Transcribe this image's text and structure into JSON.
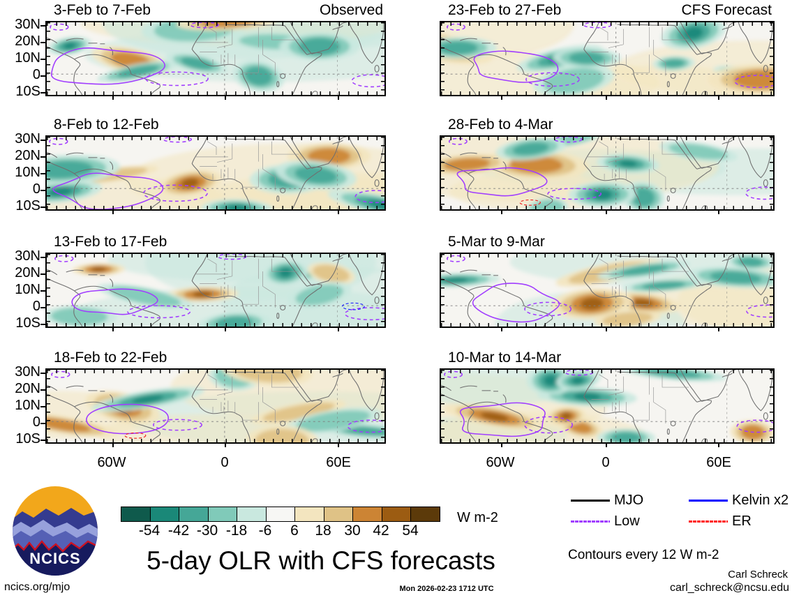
{
  "figure": {
    "columns": [
      {
        "header": "Observed",
        "panels": [
          {
            "title": "3-Feb to 7-Feb"
          },
          {
            "title": "8-Feb to 12-Feb"
          },
          {
            "title": "13-Feb to 17-Feb"
          },
          {
            "title": "18-Feb to 22-Feb"
          }
        ]
      },
      {
        "header": "CFS Forecast",
        "panels": [
          {
            "title": "23-Feb to 27-Feb"
          },
          {
            "title": "28-Feb to 4-Mar"
          },
          {
            "title": "5-Mar to 9-Mar"
          },
          {
            "title": "10-Mar to 14-Mar"
          }
        ]
      }
    ],
    "y_tick_labels": [
      "30N",
      "20N",
      "10N",
      "0",
      "10S"
    ],
    "x_tick_labels": [
      "60W",
      "0",
      "60E"
    ]
  },
  "colorbar": {
    "tick_labels": [
      "-54",
      "-42",
      "-30",
      "-18",
      "-6",
      "6",
      "18",
      "30",
      "42",
      "54"
    ],
    "colors": [
      "#0f5a4c",
      "#1a8878",
      "#45a797",
      "#80cab9",
      "#c9e8df",
      "#f7f7f4",
      "#f3e5bf",
      "#dfc286",
      "#cc8434",
      "#9c5c12",
      "#5c3a0a"
    ],
    "units": "W m-2"
  },
  "legend": {
    "items": [
      {
        "label": "MJO",
        "color": "#000000",
        "style": "solid"
      },
      {
        "label": "Low",
        "color": "#a13dff",
        "style": "dashed-fine"
      },
      {
        "label": "Kelvin x2",
        "color": "#0000ff",
        "style": "solid"
      },
      {
        "label": "ER",
        "color": "#ff1a1a",
        "style": "dashed-fine"
      }
    ],
    "note": "Contours every 12 W m-2"
  },
  "title": "5-day OLR with CFS forecasts",
  "footer": {
    "site": "ncics.org/mjo",
    "timestamp": "Mon 2026-02-23 1712 UTC",
    "author": "Carl Schreck",
    "email": "carl_schreck@ncsu.edu"
  },
  "logo": {
    "text": "NCICS"
  },
  "map_colors": {
    "coast": "#6f6f6f",
    "border_lines": "#979797",
    "grid": "#7d7d7d",
    "contour_low": "#a13dff",
    "contour_kelvin": "#2222ff",
    "contour_er": "#ee2222"
  },
  "chart_data": {
    "type": "heatmap",
    "title": "5-day OLR with CFS forecasts",
    "variable": "Outgoing Longwave Radiation anomaly",
    "units": "W m-2",
    "colorbar_levels": [
      -54,
      -42,
      -30,
      -18,
      -6,
      6,
      18,
      30,
      42,
      54
    ],
    "contour_note": "Contours every 12 W m-2",
    "x_ticks": [
      "60W",
      "0",
      "60E"
    ],
    "y_ticks": [
      "30N",
      "20N",
      "10N",
      "0",
      "10S"
    ],
    "legend_entries": [
      "MJO",
      "Low",
      "Kelvin x2",
      "ER"
    ],
    "panels": [
      {
        "period": "3-Feb to 7-Feb",
        "source": "Observed"
      },
      {
        "period": "8-Feb to 12-Feb",
        "source": "Observed"
      },
      {
        "period": "13-Feb to 17-Feb",
        "source": "Observed"
      },
      {
        "period": "18-Feb to 22-Feb",
        "source": "Observed"
      },
      {
        "period": "23-Feb to 27-Feb",
        "source": "CFS Forecast"
      },
      {
        "period": "28-Feb to 4-Mar",
        "source": "CFS Forecast"
      },
      {
        "period": "5-Mar to 9-Mar",
        "source": "CFS Forecast"
      },
      {
        "period": "10-Mar to 14-Mar",
        "source": "CFS Forecast"
      }
    ]
  }
}
